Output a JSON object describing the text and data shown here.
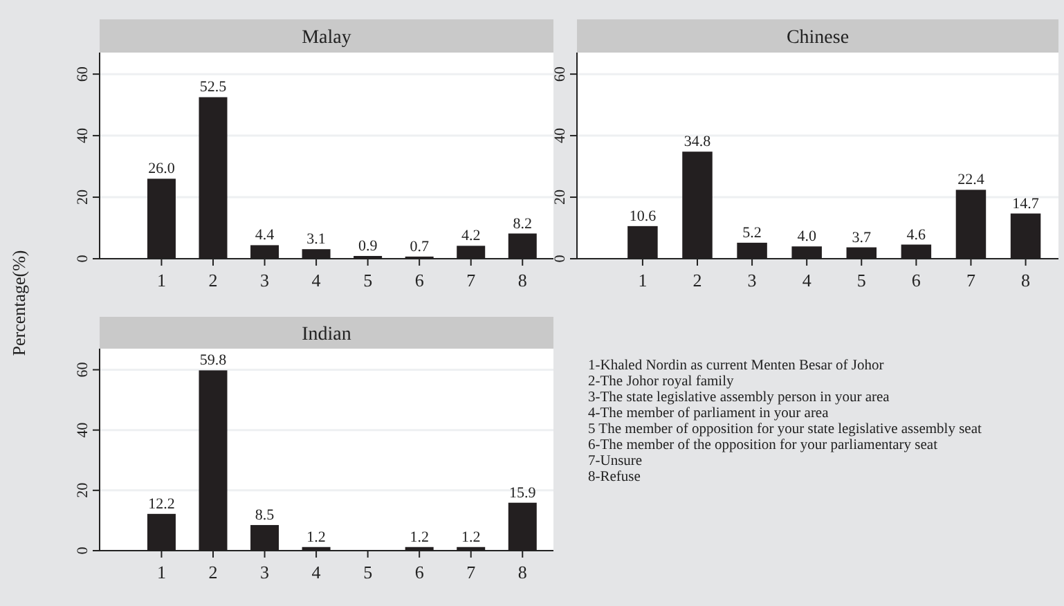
{
  "chart_data": [
    {
      "type": "bar",
      "title": "Malay",
      "ylabel": "Percentage(%)",
      "x": [
        1,
        2,
        3,
        4,
        5,
        6,
        7,
        8
      ],
      "values": [
        26.0,
        52.5,
        4.4,
        3.1,
        0.9,
        0.7,
        4.2,
        8.2
      ],
      "value_labels": [
        "26.0",
        "52.5",
        "4.4",
        "3.1",
        "0.9",
        "0.7",
        "4.2",
        "8.2"
      ],
      "color": "#231f20",
      "xlim": [
        -0.2,
        8.6
      ],
      "xticks": [
        1,
        2,
        3,
        4,
        5,
        6,
        7,
        8
      ],
      "ylim": [
        0,
        67
      ],
      "yticks": [
        0,
        20,
        40,
        60
      ],
      "grid": "y"
    },
    {
      "type": "bar",
      "title": "Chinese",
      "x": [
        1,
        2,
        3,
        4,
        5,
        6,
        7,
        8
      ],
      "values": [
        10.6,
        34.8,
        5.2,
        4.0,
        3.7,
        4.6,
        22.4,
        14.7
      ],
      "value_labels": [
        "10.6",
        "34.8",
        "5.2",
        "4.0",
        "3.7",
        "4.6",
        "22.4",
        "14.7"
      ],
      "color": "#231f20",
      "xlim": [
        -0.2,
        8.6
      ],
      "xticks": [
        1,
        2,
        3,
        4,
        5,
        6,
        7,
        8
      ],
      "ylim": [
        0,
        67
      ],
      "yticks": [
        0,
        20,
        40,
        60
      ],
      "grid": "y"
    },
    {
      "type": "bar",
      "title": "Indian",
      "x": [
        1,
        2,
        3,
        4,
        5,
        6,
        7,
        8
      ],
      "values": [
        12.2,
        59.8,
        8.5,
        1.2,
        null,
        1.2,
        1.2,
        15.9
      ],
      "value_labels": [
        "12.2",
        "59.8",
        "8.5",
        "1.2",
        null,
        "1.2",
        "1.2",
        "15.9"
      ],
      "color": "#231f20",
      "xlim": [
        -0.2,
        8.6
      ],
      "xticks": [
        1,
        2,
        3,
        4,
        5,
        6,
        7,
        8
      ],
      "ylim": [
        0,
        67
      ],
      "yticks": [
        0,
        20,
        40,
        60
      ],
      "grid": "y"
    },
    {
      "type": "other",
      "annotations": [
        "1-Khaled Nordin as current Menten Besar of Johor",
        "2-The Johor royal family",
        "3-The state legislative assembly person in your area",
        "4-The member of parliament in your area",
        "5 The member of opposition for your state legislative assembly seat",
        "6-The member of the opposition for your parliamentary seat",
        "7-Unsure",
        "8-Refuse"
      ]
    }
  ]
}
